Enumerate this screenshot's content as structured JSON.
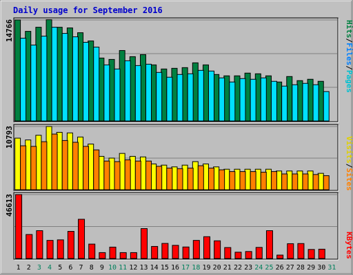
{
  "title": "Daily usage for September 2016",
  "colors": {
    "background": "#c0c0c0",
    "panel": "#bebebe",
    "title": "#0000cc",
    "hits": "#008040",
    "files": "#00e0ff",
    "pages": "#00c0d0",
    "visits": "#ffff00",
    "sites": "#ff8000",
    "kbytes": "#ff0000",
    "day_normal": "#000000",
    "day_weekend": "#00805c"
  },
  "right_labels": {
    "pages": "Pages",
    "files": "Files",
    "hits": "Hits",
    "sites": "Sites",
    "visits": "Visits",
    "kbytes": "KBytes",
    "sep": "/"
  },
  "chart_data": {
    "type": "bar",
    "title": "Daily usage for September 2016",
    "categories": [
      "1",
      "2",
      "3",
      "4",
      "5",
      "6",
      "7",
      "8",
      "9",
      "10",
      "11",
      "12",
      "13",
      "14",
      "15",
      "16",
      "17",
      "18",
      "19",
      "20",
      "21",
      "22",
      "23",
      "24",
      "25",
      "26",
      "27",
      "28",
      "29",
      "30",
      "31"
    ],
    "weekend_days": [
      "3",
      "4",
      "10",
      "11",
      "17",
      "18",
      "24",
      "25",
      "31"
    ],
    "panels": [
      {
        "name": "hits-files",
        "max_label": "14766",
        "ymax": 14766,
        "series": [
          {
            "name": "Hits",
            "key": "hits",
            "values": [
              14766,
              13100,
              13700,
              14800,
              13700,
              13600,
              12900,
              11700,
              9200,
              9000,
              10300,
              9400,
              9700,
              8200,
              7600,
              7700,
              7800,
              8500,
              8200,
              6800,
              6600,
              6600,
              7000,
              6900,
              6600,
              5700,
              6500,
              5900,
              6100,
              5800,
              0
            ]
          },
          {
            "name": "Files",
            "key": "files",
            "values": [
              12100,
              11100,
              12400,
              13700,
              12800,
              12300,
              11500,
              10800,
              8200,
              7600,
              8800,
              8100,
              8300,
              7100,
              6400,
              6800,
              6900,
              7400,
              7300,
              6300,
              5700,
              6200,
              6100,
              6300,
              5800,
              5100,
              5300,
              5500,
              5300,
              4300,
              0
            ]
          }
        ]
      },
      {
        "name": "visits-sites",
        "max_label": "10793",
        "ymax": 10793,
        "series": [
          {
            "name": "Visits",
            "key": "visits",
            "values": [
              8800,
              8500,
              9300,
              10793,
              9800,
              9700,
              9000,
              7800,
              5700,
              5400,
              6200,
              5700,
              5600,
              4400,
              4200,
              3900,
              4200,
              4800,
              4400,
              3900,
              3500,
              3500,
              3500,
              3500,
              3500,
              3200,
              3200,
              3200,
              3200,
              2800,
              0
            ]
          },
          {
            "name": "Sites",
            "key": "sites",
            "values": [
              7500,
              7400,
              8200,
              9500,
              8400,
              8100,
              7400,
              6800,
              4900,
              4800,
              5100,
              4900,
              4900,
              4000,
              3700,
              3600,
              3700,
              4100,
              3700,
              3400,
              3100,
              3100,
              3100,
              3000,
              3100,
              2700,
              2700,
              2700,
              2600,
              2400,
              0
            ]
          }
        ]
      },
      {
        "name": "kbytes",
        "max_label": "46613",
        "ymax": 46613,
        "series": [
          {
            "name": "KBytes",
            "key": "kbytes",
            "values": [
              46613,
              17500,
              20300,
              13200,
              13600,
              19800,
              28600,
              10500,
              4300,
              8300,
              4300,
              4300,
              21800,
              8800,
              11000,
              9600,
              8400,
              13200,
              15900,
              12900,
              8000,
              4600,
              5100,
              8100,
              20300,
              2500,
              10800,
              10900,
              6600,
              6800,
              0
            ]
          }
        ]
      }
    ]
  }
}
